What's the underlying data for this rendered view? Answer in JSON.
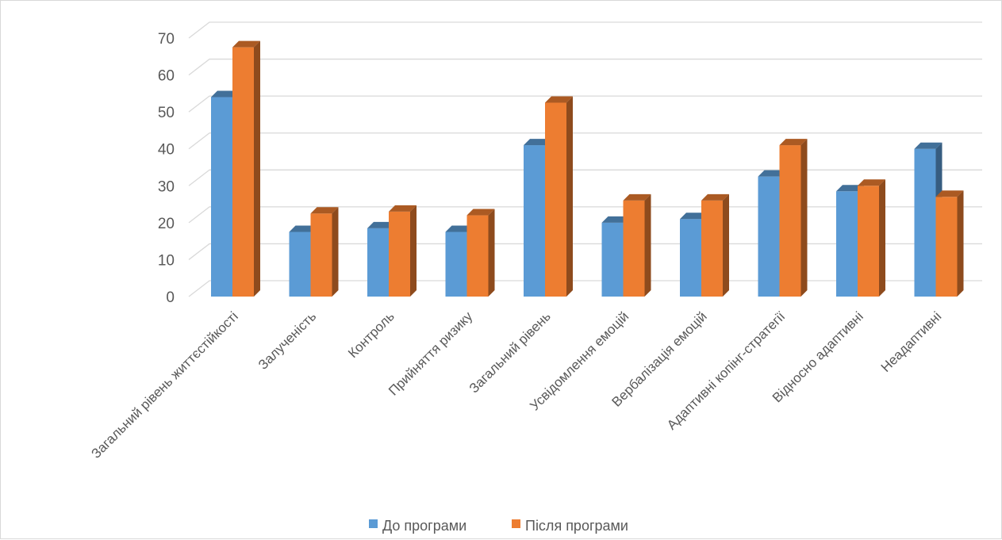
{
  "chart_data": {
    "type": "bar",
    "title": "",
    "xlabel": "",
    "ylabel": "",
    "ylim": [
      0,
      70
    ],
    "yticks": [
      0,
      10,
      20,
      30,
      40,
      50,
      60,
      70
    ],
    "grid": true,
    "legend_position": "bottom",
    "style": "3d-clustered-column",
    "categories": [
      "Загальний рівень життєстійкості",
      "Залученість",
      "Контроль",
      "Прийняття ризику",
      "Загальний рівень",
      "Усвідомлення емоцій",
      "Вербалізація емоцій",
      "Адаптивні копінг-стратегії",
      "Відносно адаптивні",
      "Неадаптивні"
    ],
    "series": [
      {
        "name": "До програми",
        "color": "#5B9BD5",
        "values": [
          54,
          17.5,
          18.5,
          17.5,
          41,
          20,
          21,
          32.5,
          28.5,
          40
        ]
      },
      {
        "name": "Після програми",
        "color": "#ED7D31",
        "values": [
          67.5,
          22.5,
          23,
          22,
          52.5,
          26,
          26,
          41,
          30,
          27
        ]
      }
    ]
  }
}
